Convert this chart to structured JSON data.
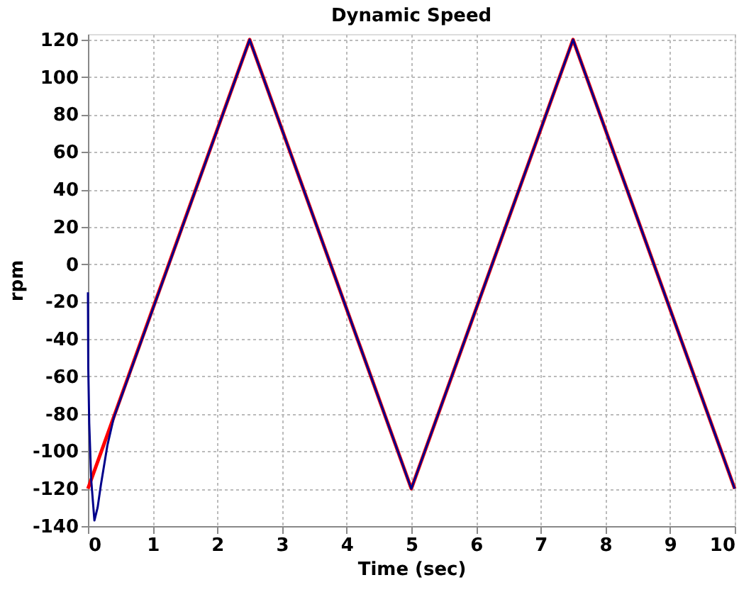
{
  "chart_data": {
    "type": "line",
    "title": "Dynamic Speed",
    "xlabel": "Time (sec)",
    "ylabel": "rpm",
    "series": [
      {
        "color": "#ff0000",
        "x": [
          0,
          2.5,
          5,
          7.5,
          10
        ],
        "values": [
          -120,
          120,
          -120,
          120,
          -120
        ]
      },
      {
        "color": "#00008b",
        "x": [
          0,
          0.005,
          0.02,
          0.05,
          0.1,
          0.15,
          0.2,
          0.3,
          0.4,
          2.5,
          5,
          7.5,
          10
        ],
        "values": [
          -15,
          -55,
          -85,
          -115,
          -137,
          -130,
          -118,
          -97,
          -82,
          120,
          -120,
          120,
          -120
        ]
      }
    ],
    "xlim": [
      0,
      10
    ],
    "ylim": [
      -140,
      123
    ],
    "xticks": [
      0,
      1,
      2,
      3,
      4,
      5,
      6,
      7,
      8,
      9,
      10
    ],
    "yticks": [
      -140,
      -120,
      -100,
      -80,
      -60,
      -40,
      -20,
      0,
      20,
      40,
      60,
      80,
      100,
      120
    ],
    "grid": true,
    "marker": "none",
    "line_style": "solid"
  }
}
